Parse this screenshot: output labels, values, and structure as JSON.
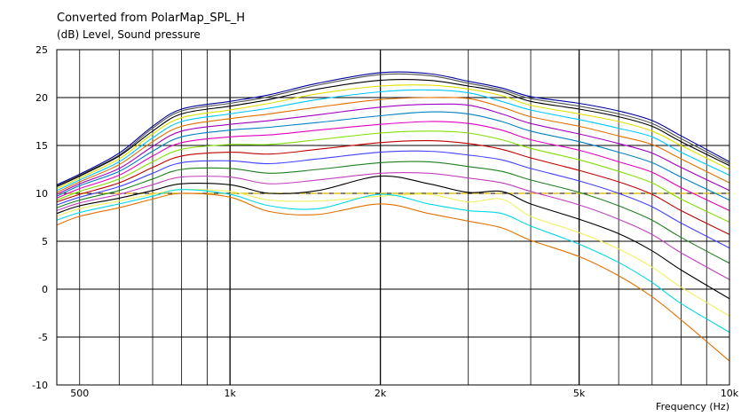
{
  "chart_data": {
    "type": "line",
    "title": "Converted from PolarMap_SPL_H",
    "ylabel": "(dB)  Level, Sound pressure",
    "xlabel": "Frequency  (Hz)",
    "x_scale": "log",
    "xlim": [
      450,
      10000
    ],
    "ylim": [
      -10,
      25
    ],
    "y_ticks": [
      25,
      20,
      15,
      10,
      5,
      0,
      -5,
      -10
    ],
    "x_tick_labels": [
      {
        "value": 500,
        "label": "500"
      },
      {
        "value": 1000,
        "label": "1k"
      },
      {
        "value": 2000,
        "label": "2k"
      },
      {
        "value": 5000,
        "label": "5k"
      },
      {
        "value": 10000,
        "label": "10k"
      }
    ],
    "grid": true,
    "reference_line": {
      "y": 10,
      "color": "#d9b200",
      "style": "dashed"
    },
    "x": [
      450,
      500,
      600,
      700,
      800,
      1000,
      1200,
      1500,
      2000,
      2500,
      3000,
      3500,
      4000,
      5000,
      6000,
      7000,
      8000,
      10000
    ],
    "series": [
      {
        "color": "#0000a0",
        "values": [
          10.9,
          12.0,
          14.2,
          17.0,
          18.8,
          19.6,
          20.3,
          21.5,
          22.6,
          22.5,
          21.7,
          21.0,
          20.1,
          19.4,
          18.6,
          17.6,
          16.0,
          13.3
        ]
      },
      {
        "color": "#505050",
        "values": [
          10.8,
          11.9,
          14.0,
          16.8,
          18.6,
          19.4,
          20.1,
          21.3,
          22.4,
          22.3,
          21.5,
          20.8,
          19.9,
          19.1,
          18.3,
          17.3,
          15.7,
          13.1
        ]
      },
      {
        "color": "#000000",
        "values": [
          10.7,
          11.8,
          13.9,
          16.5,
          18.3,
          19.1,
          19.8,
          20.9,
          21.8,
          21.8,
          21.2,
          20.6,
          19.6,
          18.8,
          18.0,
          17.0,
          15.4,
          12.9
        ]
      },
      {
        "color": "#e0e000",
        "values": [
          10.5,
          11.6,
          13.6,
          16.2,
          17.9,
          18.7,
          19.4,
          20.4,
          21.2,
          21.3,
          20.9,
          20.2,
          19.2,
          18.3,
          17.5,
          16.5,
          15.0,
          12.5
        ]
      },
      {
        "color": "#00c8ff",
        "values": [
          10.3,
          11.4,
          13.3,
          15.8,
          17.5,
          18.3,
          18.9,
          19.8,
          20.6,
          20.8,
          20.5,
          19.6,
          18.7,
          17.7,
          16.8,
          15.9,
          14.3,
          11.9
        ]
      },
      {
        "color": "#e07000",
        "values": [
          10.1,
          11.2,
          13.0,
          15.4,
          17.0,
          17.8,
          18.3,
          19.0,
          19.8,
          20.0,
          19.9,
          19.0,
          18.0,
          17.0,
          16.0,
          15.1,
          13.6,
          11.1
        ]
      },
      {
        "color": "#a000c0",
        "values": [
          9.9,
          11.0,
          12.6,
          14.9,
          16.5,
          17.2,
          17.6,
          18.2,
          19.0,
          19.3,
          19.2,
          18.3,
          17.3,
          16.2,
          15.2,
          14.2,
          12.7,
          10.3
        ]
      },
      {
        "color": "#0080c0",
        "values": [
          9.7,
          10.8,
          12.3,
          14.4,
          15.9,
          16.6,
          16.9,
          17.4,
          18.1,
          18.5,
          18.3,
          17.5,
          16.5,
          15.4,
          14.3,
          13.2,
          11.7,
          9.3
        ]
      },
      {
        "color": "#e000c0",
        "values": [
          9.5,
          10.5,
          11.9,
          13.9,
          15.3,
          15.9,
          16.1,
          16.6,
          17.2,
          17.5,
          17.3,
          16.6,
          15.6,
          14.5,
          13.3,
          12.2,
          10.6,
          8.2
        ]
      },
      {
        "color": "#80e000",
        "values": [
          9.3,
          10.2,
          11.5,
          13.3,
          14.6,
          15.1,
          15.1,
          15.6,
          16.3,
          16.5,
          16.3,
          15.6,
          14.7,
          13.5,
          12.3,
          11.1,
          9.4,
          7.0
        ]
      },
      {
        "color": "#c00000",
        "values": [
          9.1,
          9.9,
          11.1,
          12.7,
          13.9,
          14.3,
          14.1,
          14.6,
          15.3,
          15.5,
          15.2,
          14.6,
          13.7,
          12.4,
          11.2,
          9.9,
          8.2,
          5.7
        ]
      },
      {
        "color": "#4040ff",
        "values": [
          8.8,
          9.6,
          10.7,
          12.1,
          13.2,
          13.4,
          13.1,
          13.6,
          14.3,
          14.4,
          14.0,
          13.5,
          12.6,
          11.3,
          10.0,
          8.6,
          6.9,
          4.3
        ]
      },
      {
        "color": "#208020",
        "values": [
          8.5,
          9.3,
          10.3,
          11.5,
          12.5,
          12.6,
          12.1,
          12.5,
          13.2,
          13.3,
          12.8,
          12.3,
          11.4,
          10.1,
          8.7,
          7.2,
          5.4,
          2.7
        ]
      },
      {
        "color": "#c040c0",
        "values": [
          8.2,
          9.0,
          9.9,
          10.9,
          11.7,
          11.7,
          11.0,
          11.4,
          12.1,
          12.1,
          11.6,
          11.1,
          10.2,
          8.8,
          7.3,
          5.7,
          3.8,
          1.0
        ]
      },
      {
        "color": "#000000",
        "values": [
          7.9,
          8.7,
          9.5,
          10.3,
          11.0,
          10.9,
          10.0,
          10.3,
          11.8,
          11.0,
          10.1,
          10.2,
          8.9,
          7.3,
          5.8,
          4.0,
          2.0,
          -1.0
        ]
      },
      {
        "color": "#f0f060",
        "values": [
          7.6,
          8.4,
          9.2,
          9.9,
          10.4,
          10.2,
          9.3,
          9.2,
          9.7,
          9.9,
          9.1,
          9.4,
          7.6,
          5.9,
          4.2,
          2.3,
          0.2,
          -2.8
        ]
      },
      {
        "color": "#00d8e8",
        "values": [
          7.2,
          8.0,
          8.9,
          9.7,
          10.4,
          9.9,
          8.7,
          8.4,
          9.9,
          8.9,
          8.2,
          7.9,
          6.6,
          4.7,
          2.8,
          0.7,
          -1.5,
          -4.5
        ]
      },
      {
        "color": "#e07000",
        "values": [
          6.7,
          7.6,
          8.5,
          9.4,
          10.0,
          9.6,
          8.1,
          7.8,
          8.9,
          7.9,
          7.1,
          6.4,
          5.1,
          3.4,
          1.4,
          -0.8,
          -3.2,
          -7.5
        ]
      }
    ]
  }
}
